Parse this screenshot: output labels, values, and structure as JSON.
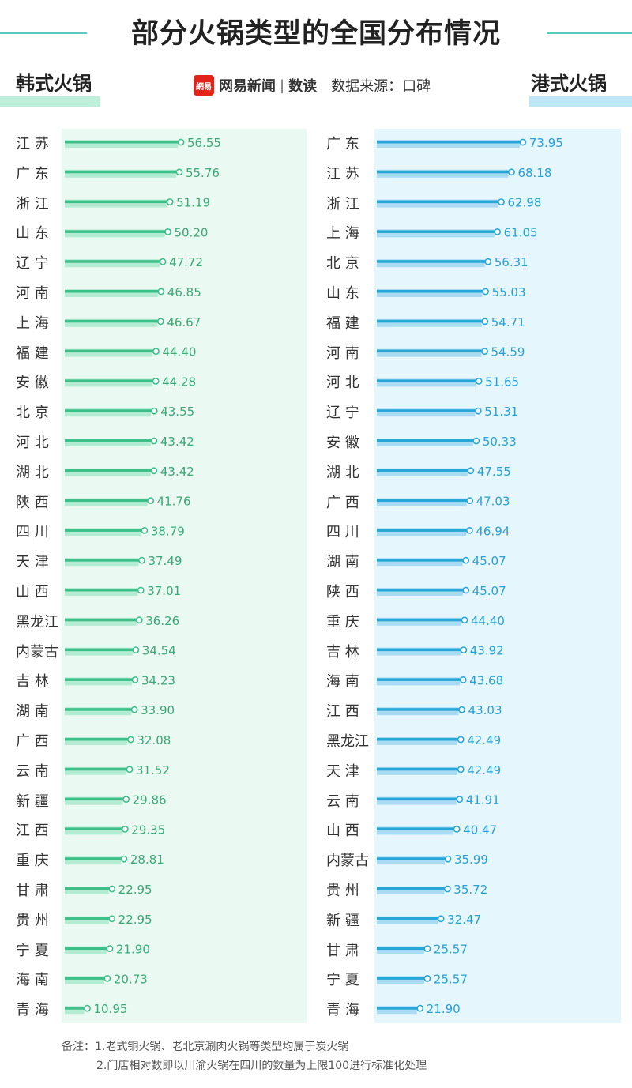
{
  "title": "部分火锅类型的全国分布情况",
  "brand": {
    "logo_text": "網易",
    "name": "网易新闻",
    "sub": "数读",
    "source": "数据来源：口碑"
  },
  "left_title": "韩式火锅",
  "right_title": "港式火锅",
  "colors": {
    "left_bar": "#3dbf8a",
    "left_shadow": "#b4ecd3",
    "left_panel": "#eaf9f1",
    "left_text": "#3aa877",
    "right_bar": "#27a7d8",
    "right_shadow": "#a9dcf2",
    "right_panel": "#e6f6fd",
    "right_text": "#27a0d4",
    "title_line": "#5cc9bd"
  },
  "notes": {
    "line1": "备注：1.老式铜火锅、老北京涮肉火锅等类型均属于炭火锅",
    "line2": "2.门店相对数即以川渝火锅在四川的数量为上限100进行标准化处理"
  },
  "chart_data": [
    {
      "type": "bar",
      "title": "韩式火锅",
      "categories": [
        "江苏",
        "广东",
        "浙江",
        "山东",
        "辽宁",
        "河南",
        "上海",
        "福建",
        "安徽",
        "北京",
        "河北",
        "湖北",
        "陕西",
        "四川",
        "天津",
        "山西",
        "黑龙江",
        "内蒙古",
        "吉林",
        "湖南",
        "广西",
        "云南",
        "新疆",
        "江西",
        "重庆",
        "甘肃",
        "贵州",
        "宁夏",
        "海南",
        "青海"
      ],
      "labels": [
        "江 苏",
        "广 东",
        "浙 江",
        "山 东",
        "辽 宁",
        "河 南",
        "上 海",
        "福 建",
        "安 徽",
        "北 京",
        "河 北",
        "湖 北",
        "陕 西",
        "四 川",
        "天 津",
        "山 西",
        "黑龙江",
        "内蒙古",
        "吉 林",
        "湖 南",
        "广 西",
        "云 南",
        "新 疆",
        "江 西",
        "重 庆",
        "甘 肃",
        "贵 州",
        "宁 夏",
        "海 南",
        "青 海"
      ],
      "values": [
        56.55,
        55.76,
        51.19,
        50.2,
        47.72,
        46.85,
        46.67,
        44.4,
        44.28,
        43.55,
        43.42,
        43.42,
        41.76,
        38.79,
        37.49,
        37.01,
        36.26,
        34.54,
        34.23,
        33.9,
        32.08,
        31.52,
        29.86,
        29.35,
        28.81,
        22.95,
        22.95,
        21.9,
        20.73,
        10.95
      ],
      "value_labels": [
        "56.55",
        "55.76",
        "51.19",
        "50.20",
        "47.72",
        "46.85",
        "46.67",
        "44.40",
        "44.28",
        "43.55",
        "43.42",
        "43.42",
        "41.76",
        "38.79",
        "37.49",
        "37.01",
        "36.26",
        "34.54",
        "34.23",
        "33.90",
        "32.08",
        "31.52",
        "29.86",
        "29.35",
        "28.81",
        "22.95",
        "22.95",
        "21.90",
        "20.73",
        "10.95"
      ],
      "orientation": "horizontal",
      "xlim": [
        0,
        100
      ]
    },
    {
      "type": "bar",
      "title": "港式火锅",
      "categories": [
        "广东",
        "江苏",
        "浙江",
        "上海",
        "北京",
        "山东",
        "福建",
        "河南",
        "河北",
        "辽宁",
        "安徽",
        "湖北",
        "广西",
        "四川",
        "湖南",
        "陕西",
        "重庆",
        "吉林",
        "海南",
        "江西",
        "黑龙江",
        "天津",
        "云南",
        "山西",
        "内蒙古",
        "贵州",
        "新疆",
        "甘肃",
        "宁夏",
        "青海"
      ],
      "labels": [
        "广 东",
        "江 苏",
        "浙 江",
        "上 海",
        "北 京",
        "山 东",
        "福 建",
        "河 南",
        "河 北",
        "辽 宁",
        "安 徽",
        "湖 北",
        "广 西",
        "四 川",
        "湖 南",
        "陕 西",
        "重 庆",
        "吉 林",
        "海 南",
        "江 西",
        "黑龙江",
        "天 津",
        "云 南",
        "山 西",
        "内蒙古",
        "贵 州",
        "新 疆",
        "甘 肃",
        "宁 夏",
        "青 海"
      ],
      "values": [
        73.95,
        68.18,
        62.98,
        61.05,
        56.31,
        55.03,
        54.71,
        54.59,
        51.65,
        51.31,
        50.33,
        47.55,
        47.03,
        46.94,
        45.07,
        45.07,
        44.4,
        43.92,
        43.68,
        43.03,
        42.49,
        42.49,
        41.91,
        40.47,
        35.99,
        35.72,
        32.47,
        25.57,
        25.57,
        21.9
      ],
      "value_labels": [
        "73.95",
        "68.18",
        "62.98",
        "61.05",
        "56.31",
        "55.03",
        "54.71",
        "54.59",
        "51.65",
        "51.31",
        "50.33",
        "47.55",
        "47.03",
        "46.94",
        "45.07",
        "45.07",
        "44.40",
        "43.92",
        "43.68",
        "43.03",
        "42.49",
        "42.49",
        "41.91",
        "40.47",
        "35.99",
        "35.72",
        "32.47",
        "25.57",
        "25.57",
        "21.90"
      ],
      "orientation": "horizontal",
      "xlim": [
        0,
        100
      ]
    }
  ]
}
